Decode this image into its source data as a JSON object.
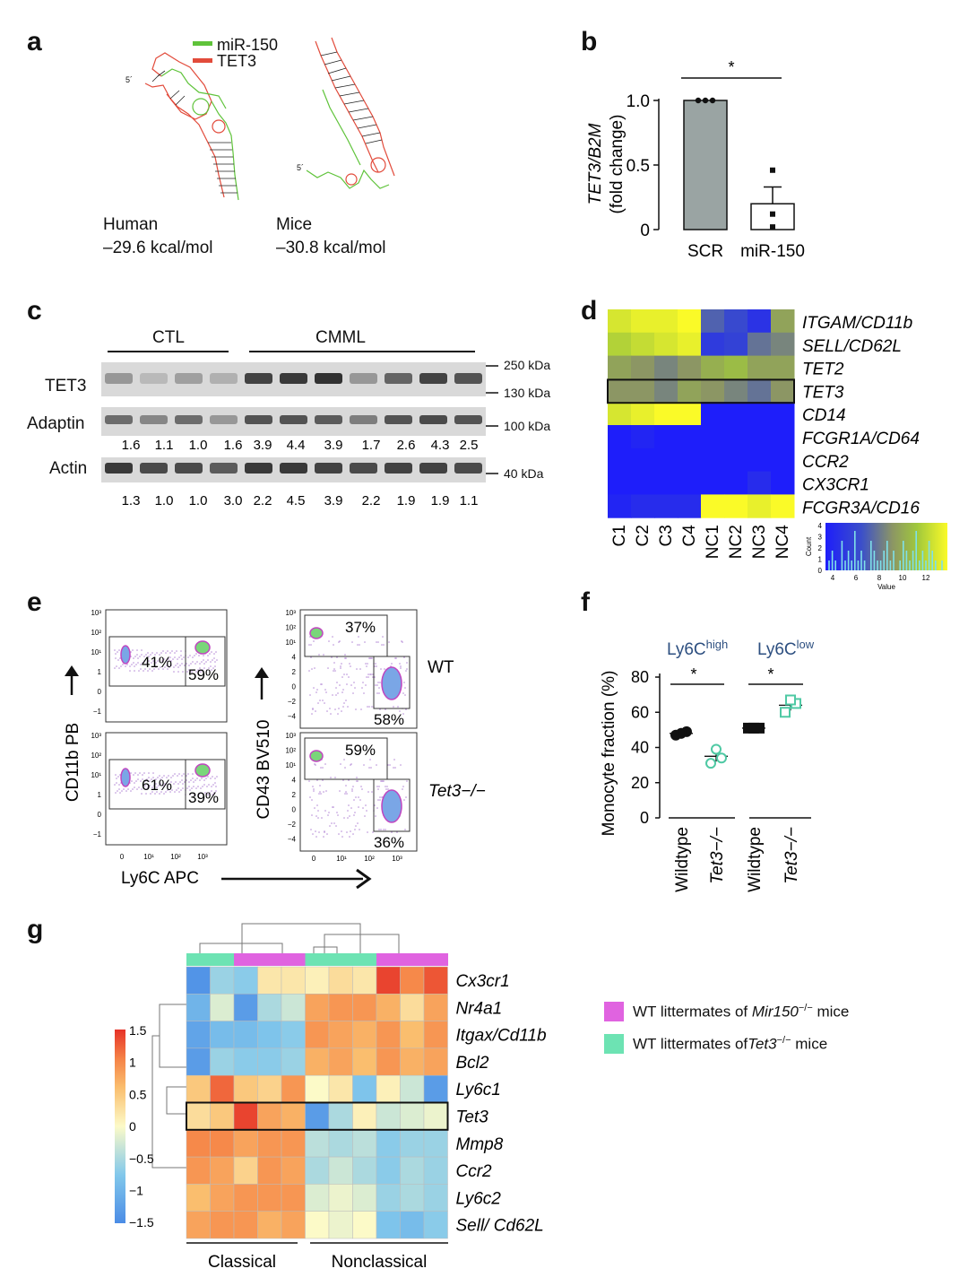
{
  "panel_labels": [
    "a",
    "b",
    "c",
    "d",
    "e",
    "f",
    "g"
  ],
  "panel_a": {
    "legend": [
      {
        "label": "miR-150",
        "color": "#5fc33a"
      },
      {
        "label": "TET3",
        "color": "#e24b3b"
      }
    ],
    "five_prime": "5´",
    "human_label": "Human",
    "human_energy": "–29.6 kcal/mol",
    "mice_label": "Mice",
    "mice_energy": "–30.8 kcal/mol"
  },
  "chart_data": [
    {
      "panel": "b",
      "type": "bar",
      "categories": [
        "SCR",
        "miR-150"
      ],
      "values": [
        1.0,
        0.2
      ],
      "error": [
        0,
        0.13
      ],
      "points": [
        [
          1.0,
          1.0,
          1.0
        ],
        [
          0.02,
          0.12,
          0.46
        ]
      ],
      "ylabel": "TET3/B2M",
      "ylabel2": "(fold change)",
      "ylim": [
        0,
        1.0
      ],
      "yticks": [
        "0",
        "0.5",
        "1.0"
      ],
      "significance": "*"
    },
    {
      "panel": "f",
      "type": "scatter",
      "groups": [
        "Ly6C^high",
        "Ly6C^low"
      ],
      "categories": [
        "Wildtype",
        "Tet3−/−",
        "Wildtype",
        "Tet3−/−"
      ],
      "values": [
        48,
        35,
        51,
        64
      ],
      "points": [
        [
          47,
          49,
          48
        ],
        [
          31,
          34,
          39
        ],
        [
          51,
          51,
          51
        ],
        [
          60,
          65,
          67
        ]
      ],
      "ylabel": "Monocyte fraction (%)",
      "ylim": [
        0,
        80
      ],
      "yticks": [
        "0",
        "20",
        "40",
        "60",
        "80"
      ],
      "significance": [
        "*",
        "*"
      ]
    }
  ],
  "panel_b": {
    "ylabel_main": "TET3/B2M",
    "ylabel_sub": "(fold change)",
    "star": "*"
  },
  "panel_c": {
    "group_ctl": "CTL",
    "group_cmml": "CMML",
    "rows": [
      "TET3",
      "Adaptin",
      "Actin"
    ],
    "markers": [
      "250 kDa",
      "130 kDa",
      "100 kDa",
      "40 kDa"
    ],
    "adaptin_values": [
      "1.6",
      "1.1",
      "1.0",
      "1.6",
      "3.9",
      "4.4",
      "3.9",
      "1.7",
      "2.6",
      "4.3",
      "2.5"
    ],
    "actin_values": [
      "1.3",
      "1.0",
      "1.0",
      "3.0",
      "2.2",
      "4.5",
      "3.9",
      "2.2",
      "1.9",
      "1.9",
      "1.1"
    ],
    "tet3_band_intensity": [
      0.35,
      0.15,
      0.3,
      0.2,
      0.85,
      0.9,
      0.95,
      0.35,
      0.65,
      0.85,
      0.75
    ],
    "adaptin_band_intensity": [
      0.6,
      0.45,
      0.6,
      0.35,
      0.75,
      0.75,
      0.7,
      0.5,
      0.75,
      0.8,
      0.75
    ],
    "actin_band_intensity": [
      0.9,
      0.8,
      0.8,
      0.7,
      0.9,
      0.9,
      0.85,
      0.8,
      0.85,
      0.85,
      0.8
    ]
  },
  "panel_d": {
    "columns": [
      "C1",
      "C2",
      "C3",
      "C4",
      "NC1",
      "NC2",
      "NC3",
      "NC4"
    ],
    "genes": [
      "ITGAM/CD11b",
      "SELL/CD62L",
      "TET2",
      "TET3",
      "CD14",
      "FCGR1A/CD64",
      "CCR2",
      "CX3CR1",
      "FCGR3A/CD16"
    ],
    "highlight_gene": "TET3",
    "values": [
      [
        13.0,
        13.5,
        13.5,
        14.0,
        8.0,
        7.0,
        5.5,
        10.0
      ],
      [
        12.0,
        12.5,
        13.0,
        13.5,
        6.0,
        6.5,
        8.5,
        9.0
      ],
      [
        10.0,
        9.5,
        9.0,
        9.5,
        10.5,
        11.0,
        10.0,
        10.0
      ],
      [
        9.5,
        9.5,
        9.0,
        10.0,
        9.5,
        9.0,
        8.5,
        9.5
      ],
      [
        13.0,
        13.5,
        14.0,
        14.0,
        4.0,
        4.0,
        4.0,
        4.0
      ],
      [
        4.0,
        4.5,
        4.0,
        4.0,
        4.0,
        4.0,
        4.0,
        4.0
      ],
      [
        4.0,
        4.0,
        4.0,
        4.0,
        4.0,
        4.0,
        4.0,
        4.0
      ],
      [
        4.0,
        4.0,
        4.0,
        4.0,
        4.0,
        4.0,
        5.0,
        4.0
      ],
      [
        4.5,
        5.0,
        5.0,
        5.0,
        14.0,
        14.0,
        13.5,
        14.0
      ]
    ],
    "key_xlabel": "Value",
    "key_ylabel": "Count",
    "key_xticks": [
      "4",
      "6",
      "8",
      "10",
      "12"
    ],
    "key_yticks": [
      "0",
      "1",
      "2",
      "3",
      "4"
    ]
  },
  "panel_e": {
    "ylabel_left": "CD11b PB",
    "ylabel_right": "CD43 BV510",
    "xlabel": "Ly6C APC",
    "wt_label": "WT",
    "ko_label": "Tet3−/−",
    "wt_left": [
      "41%",
      "59%"
    ],
    "ko_left": [
      "61%",
      "39%"
    ],
    "wt_right": [
      "37%",
      "58%"
    ],
    "ko_right": [
      "59%",
      "36%"
    ],
    "ticks_y_left": [
      "10³",
      "10²",
      "10¹",
      "1",
      "0",
      "−1"
    ],
    "ticks_y_right": [
      "10³",
      "10²",
      "10¹",
      "4",
      "2",
      "0",
      "−2",
      "−4"
    ],
    "ticks_x": [
      "0",
      "10¹",
      "10²",
      "10³"
    ]
  },
  "panel_f": {
    "group_high": "Ly6C",
    "group_high_sup": "high",
    "group_low": "Ly6C",
    "group_low_sup": "low",
    "ylabel": "Monocyte fraction (%)",
    "xlabels": [
      "Wildtype",
      "Tet3−/−",
      "Wildtype",
      "Tet3−/−"
    ],
    "star": "*",
    "wt_color": "#111111",
    "ko_color": "#4fc9a4"
  },
  "panel_g": {
    "genes": [
      "Cx3cr1",
      "Nr4a1",
      "Itgax/Cd11b",
      "Bcl2",
      "Ly6c1",
      "Tet3",
      "Mmp8",
      "Ccr2",
      "Ly6c2",
      "Sell/ Cd62L"
    ],
    "highlight_gene": "Tet3",
    "column_groups": [
      "teal",
      "teal",
      "magenta",
      "magenta",
      "magenta",
      "teal",
      "teal",
      "teal",
      "magenta",
      "magenta",
      "magenta"
    ],
    "values": [
      [
        -1.4,
        -0.6,
        -0.7,
        0.2,
        0.2,
        0.1,
        0.3,
        0.2,
        1.4,
        1.0,
        1.3
      ],
      [
        -1.0,
        -0.2,
        -1.3,
        -0.5,
        -0.3,
        0.8,
        0.9,
        0.9,
        0.7,
        0.3,
        0.8
      ],
      [
        -1.2,
        -0.9,
        -0.9,
        -0.8,
        -0.7,
        0.9,
        0.8,
        0.7,
        0.9,
        0.6,
        0.9
      ],
      [
        -1.3,
        -0.6,
        -0.7,
        -0.7,
        -0.6,
        0.7,
        0.8,
        0.6,
        0.9,
        0.7,
        0.8
      ],
      [
        0.5,
        1.2,
        0.5,
        0.4,
        0.9,
        0.0,
        0.2,
        -0.8,
        0.1,
        -0.3,
        -1.3
      ],
      [
        0.3,
        0.5,
        1.4,
        0.8,
        0.7,
        -1.3,
        -0.5,
        0.1,
        -0.3,
        -0.2,
        -0.1
      ],
      [
        1.0,
        1.0,
        0.8,
        0.9,
        0.9,
        -0.4,
        -0.5,
        -0.4,
        -0.7,
        -0.6,
        -0.6
      ],
      [
        0.9,
        0.8,
        0.4,
        0.9,
        0.8,
        -0.5,
        -0.3,
        -0.5,
        -0.7,
        -0.5,
        -0.6
      ],
      [
        0.6,
        0.8,
        0.9,
        0.9,
        0.9,
        -0.2,
        -0.1,
        -0.2,
        -0.6,
        -0.5,
        -0.6
      ],
      [
        0.8,
        0.9,
        0.9,
        0.7,
        0.8,
        0.0,
        -0.1,
        0.0,
        -0.8,
        -0.9,
        -0.7
      ]
    ],
    "scale_ticks": [
      "1.5",
      "1",
      "0.5",
      "0",
      "−0.5",
      "−1",
      "−1.5"
    ],
    "group_classical": "Classical",
    "group_nonclassical": "Nonclassical",
    "legend": [
      {
        "prefix": "WT littermates of ",
        "gene": "Mir150",
        "sup": "−/−",
        "suffix": " mice",
        "color": "#e063e0"
      },
      {
        "prefix": "WT littermates of",
        "gene": "Tet3",
        "sup": "−/−",
        "suffix": " mice",
        "color": "#6de3b3"
      }
    ]
  }
}
